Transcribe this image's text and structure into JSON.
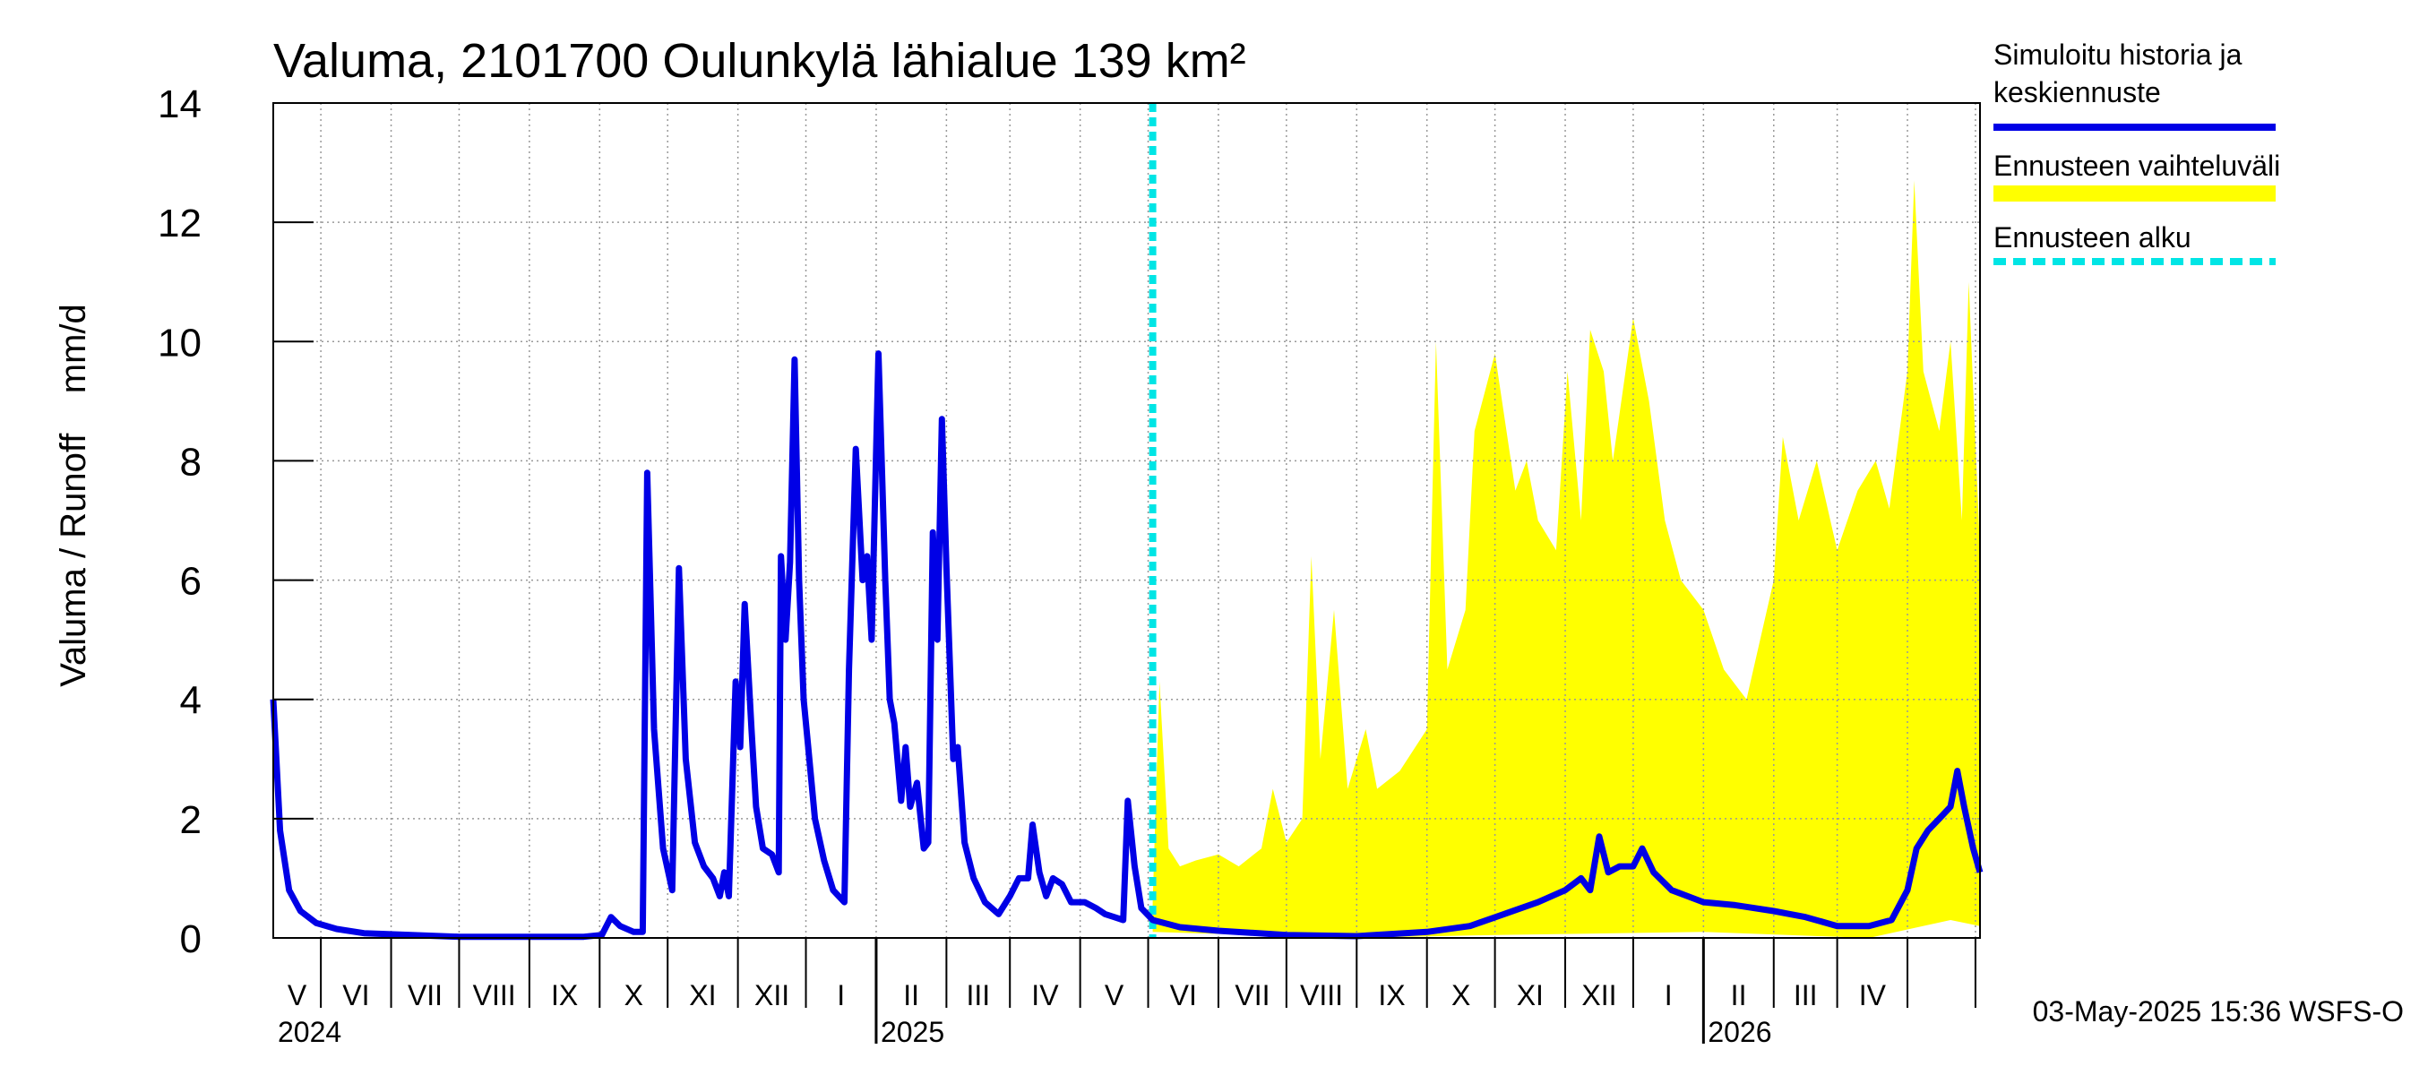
{
  "chart_data": {
    "type": "area+line",
    "title": "Valuma, 2101700 Oulunkylä lähialue 139 km²",
    "ylabel": "Valuma / Runoff    mm/d",
    "ylim": [
      0,
      14
    ],
    "yticks": [
      0,
      2,
      4,
      6,
      8,
      10,
      12,
      14
    ],
    "x_start": "2024-04-10",
    "x_end": "2026-05-03",
    "forecast_start": "2025-05-03",
    "month_labels": [
      "V",
      "VI",
      "VII",
      "VIII",
      "IX",
      "X",
      "XI",
      "XII",
      "I",
      "II",
      "III",
      "IV",
      "V",
      "VI",
      "VII",
      "VIII",
      "IX",
      "X",
      "XI",
      "XII",
      "I",
      "II",
      "III",
      "IV"
    ],
    "year_labels": [
      "2024",
      "2025",
      "2026"
    ],
    "timestamp": "03-May-2025 15:36 WSFS-O",
    "legend": [
      {
        "label_lines": [
          "Simuloitu historia ja",
          "keskiennuste"
        ],
        "color": "#0000e6",
        "style": "solid"
      },
      {
        "label_lines": [
          "Ennusteen vaihteluväli"
        ],
        "color": "#ffff00",
        "style": "band"
      },
      {
        "label_lines": [
          "Ennusteen alku"
        ],
        "color": "#00e5e5",
        "style": "dashed"
      }
    ],
    "colors": {
      "history": "#0000e6",
      "band": "#ffff00",
      "forecast_start": "#00e5e5",
      "grid": "#999999"
    },
    "series": [
      {
        "name": "Simuloitu historia ja keskiennuste",
        "points": [
          [
            "2024-04-10",
            4.0
          ],
          [
            "2024-04-13",
            1.8
          ],
          [
            "2024-04-17",
            0.8
          ],
          [
            "2024-04-22",
            0.45
          ],
          [
            "2024-04-29",
            0.25
          ],
          [
            "2024-05-08",
            0.15
          ],
          [
            "2024-05-20",
            0.08
          ],
          [
            "2024-06-10",
            0.05
          ],
          [
            "2024-07-01",
            0.02
          ],
          [
            "2024-08-01",
            0.02
          ],
          [
            "2024-08-25",
            0.02
          ],
          [
            "2024-09-02",
            0.05
          ],
          [
            "2024-09-06",
            0.35
          ],
          [
            "2024-09-10",
            0.2
          ],
          [
            "2024-09-16",
            0.1
          ],
          [
            "2024-09-20",
            0.1
          ],
          [
            "2024-09-22",
            7.8
          ],
          [
            "2024-09-25",
            3.5
          ],
          [
            "2024-09-29",
            1.5
          ],
          [
            "2024-10-03",
            0.8
          ],
          [
            "2024-10-06",
            6.2
          ],
          [
            "2024-10-09",
            3.0
          ],
          [
            "2024-10-13",
            1.6
          ],
          [
            "2024-10-17",
            1.2
          ],
          [
            "2024-10-21",
            1.0
          ],
          [
            "2024-10-24",
            0.7
          ],
          [
            "2024-10-26",
            1.1
          ],
          [
            "2024-10-28",
            0.7
          ],
          [
            "2024-10-31",
            4.3
          ],
          [
            "2024-11-02",
            3.2
          ],
          [
            "2024-11-04",
            5.6
          ],
          [
            "2024-11-07",
            3.5
          ],
          [
            "2024-11-09",
            2.2
          ],
          [
            "2024-11-12",
            1.5
          ],
          [
            "2024-11-16",
            1.4
          ],
          [
            "2024-11-19",
            1.1
          ],
          [
            "2024-11-20",
            6.4
          ],
          [
            "2024-11-22",
            5.0
          ],
          [
            "2024-11-24",
            6.3
          ],
          [
            "2024-11-26",
            9.7
          ],
          [
            "2024-11-28",
            6.0
          ],
          [
            "2024-11-30",
            4.0
          ],
          [
            "2024-12-02",
            3.2
          ],
          [
            "2024-12-05",
            2.0
          ],
          [
            "2024-12-09",
            1.3
          ],
          [
            "2024-12-13",
            0.8
          ],
          [
            "2024-12-18",
            0.6
          ],
          [
            "2024-12-20",
            4.5
          ],
          [
            "2024-12-23",
            8.2
          ],
          [
            "2024-12-26",
            6.0
          ],
          [
            "2024-12-28",
            6.4
          ],
          [
            "2024-12-30",
            5.0
          ],
          [
            "2025-01-02",
            9.8
          ],
          [
            "2025-01-05",
            6.0
          ],
          [
            "2025-01-07",
            4.0
          ],
          [
            "2025-01-09",
            3.6
          ],
          [
            "2025-01-12",
            2.3
          ],
          [
            "2025-01-14",
            3.2
          ],
          [
            "2025-01-16",
            2.2
          ],
          [
            "2025-01-19",
            2.6
          ],
          [
            "2025-01-22",
            1.5
          ],
          [
            "2025-01-24",
            1.6
          ],
          [
            "2025-01-26",
            6.8
          ],
          [
            "2025-01-28",
            5.0
          ],
          [
            "2025-01-30",
            8.7
          ],
          [
            "2025-02-01",
            6.2
          ],
          [
            "2025-02-04",
            3.0
          ],
          [
            "2025-02-06",
            3.2
          ],
          [
            "2025-02-09",
            1.6
          ],
          [
            "2025-02-13",
            1.0
          ],
          [
            "2025-02-18",
            0.6
          ],
          [
            "2025-02-24",
            0.4
          ],
          [
            "2025-03-01",
            0.7
          ],
          [
            "2025-03-05",
            1.0
          ],
          [
            "2025-03-09",
            1.0
          ],
          [
            "2025-03-11",
            1.9
          ],
          [
            "2025-03-14",
            1.1
          ],
          [
            "2025-03-17",
            0.7
          ],
          [
            "2025-03-20",
            1.0
          ],
          [
            "2025-03-24",
            0.9
          ],
          [
            "2025-03-28",
            0.6
          ],
          [
            "2025-04-03",
            0.6
          ],
          [
            "2025-04-08",
            0.5
          ],
          [
            "2025-04-12",
            0.4
          ],
          [
            "2025-04-16",
            0.35
          ],
          [
            "2025-04-20",
            0.3
          ],
          [
            "2025-04-22",
            2.3
          ],
          [
            "2025-04-25",
            1.2
          ],
          [
            "2025-04-28",
            0.5
          ],
          [
            "2025-05-03",
            0.3
          ],
          [
            "2025-05-15",
            0.18
          ],
          [
            "2025-06-01",
            0.12
          ],
          [
            "2025-07-01",
            0.05
          ],
          [
            "2025-08-01",
            0.03
          ],
          [
            "2025-09-01",
            0.1
          ],
          [
            "2025-09-20",
            0.2
          ],
          [
            "2025-10-05",
            0.4
          ],
          [
            "2025-10-20",
            0.6
          ],
          [
            "2025-11-01",
            0.8
          ],
          [
            "2025-11-08",
            1.0
          ],
          [
            "2025-11-12",
            0.8
          ],
          [
            "2025-11-16",
            1.7
          ],
          [
            "2025-11-20",
            1.1
          ],
          [
            "2025-11-25",
            1.2
          ],
          [
            "2025-12-01",
            1.2
          ],
          [
            "2025-12-05",
            1.5
          ],
          [
            "2025-12-10",
            1.1
          ],
          [
            "2025-12-18",
            0.8
          ],
          [
            "2025-12-25",
            0.7
          ],
          [
            "2026-01-01",
            0.6
          ],
          [
            "2026-01-15",
            0.55
          ],
          [
            "2026-02-01",
            0.45
          ],
          [
            "2026-02-15",
            0.35
          ],
          [
            "2026-03-01",
            0.2
          ],
          [
            "2026-03-15",
            0.2
          ],
          [
            "2026-03-25",
            0.3
          ],
          [
            "2026-04-01",
            0.8
          ],
          [
            "2026-04-05",
            1.5
          ],
          [
            "2026-04-10",
            1.8
          ],
          [
            "2026-04-15",
            2.0
          ],
          [
            "2026-04-20",
            2.2
          ],
          [
            "2026-04-23",
            2.8
          ],
          [
            "2026-04-26",
            2.2
          ],
          [
            "2026-04-30",
            1.5
          ],
          [
            "2026-05-03",
            1.1
          ]
        ]
      },
      {
        "name": "Ennusteen vaihteluväli",
        "lower": [
          [
            "2025-05-03",
            0.1
          ],
          [
            "2025-08-01",
            0.0
          ],
          [
            "2025-10-01",
            0.05
          ],
          [
            "2026-01-01",
            0.1
          ],
          [
            "2026-03-15",
            0.0
          ],
          [
            "2026-04-20",
            0.3
          ],
          [
            "2026-05-03",
            0.2
          ]
        ],
        "upper": [
          [
            "2025-05-03",
            0.6
          ],
          [
            "2025-05-06",
            4.3
          ],
          [
            "2025-05-10",
            1.5
          ],
          [
            "2025-05-15",
            1.2
          ],
          [
            "2025-05-22",
            1.3
          ],
          [
            "2025-06-01",
            1.4
          ],
          [
            "2025-06-10",
            1.2
          ],
          [
            "2025-06-20",
            1.5
          ],
          [
            "2025-06-25",
            2.5
          ],
          [
            "2025-07-01",
            1.6
          ],
          [
            "2025-07-08",
            2.0
          ],
          [
            "2025-07-12",
            6.4
          ],
          [
            "2025-07-16",
            3.0
          ],
          [
            "2025-07-22",
            5.5
          ],
          [
            "2025-07-28",
            2.5
          ],
          [
            "2025-08-05",
            3.5
          ],
          [
            "2025-08-10",
            2.5
          ],
          [
            "2025-08-20",
            2.8
          ],
          [
            "2025-09-01",
            3.5
          ],
          [
            "2025-09-05",
            10.0
          ],
          [
            "2025-09-10",
            4.5
          ],
          [
            "2025-09-18",
            5.5
          ],
          [
            "2025-09-22",
            8.5
          ],
          [
            "2025-10-01",
            9.8
          ],
          [
            "2025-10-10",
            7.5
          ],
          [
            "2025-10-15",
            8.0
          ],
          [
            "2025-10-20",
            7.0
          ],
          [
            "2025-10-28",
            6.5
          ],
          [
            "2025-11-02",
            9.5
          ],
          [
            "2025-11-08",
            7.0
          ],
          [
            "2025-11-12",
            10.2
          ],
          [
            "2025-11-18",
            9.5
          ],
          [
            "2025-11-22",
            8.0
          ],
          [
            "2025-12-01",
            10.4
          ],
          [
            "2025-12-08",
            9.0
          ],
          [
            "2025-12-15",
            7.0
          ],
          [
            "2025-12-22",
            6.0
          ],
          [
            "2026-01-01",
            5.5
          ],
          [
            "2026-01-10",
            4.5
          ],
          [
            "2026-01-20",
            4.0
          ],
          [
            "2026-02-01",
            6.0
          ],
          [
            "2026-02-05",
            8.4
          ],
          [
            "2026-02-12",
            7.0
          ],
          [
            "2026-02-20",
            8.0
          ],
          [
            "2026-03-01",
            6.5
          ],
          [
            "2026-03-10",
            7.5
          ],
          [
            "2026-03-18",
            8.0
          ],
          [
            "2026-03-24",
            7.2
          ],
          [
            "2026-04-01",
            9.5
          ],
          [
            "2026-04-04",
            12.7
          ],
          [
            "2026-04-08",
            9.5
          ],
          [
            "2026-04-15",
            8.5
          ],
          [
            "2026-04-20",
            10.0
          ],
          [
            "2026-04-25",
            7.0
          ],
          [
            "2026-04-28",
            11.0
          ],
          [
            "2026-05-03",
            6.5
          ]
        ]
      }
    ]
  }
}
